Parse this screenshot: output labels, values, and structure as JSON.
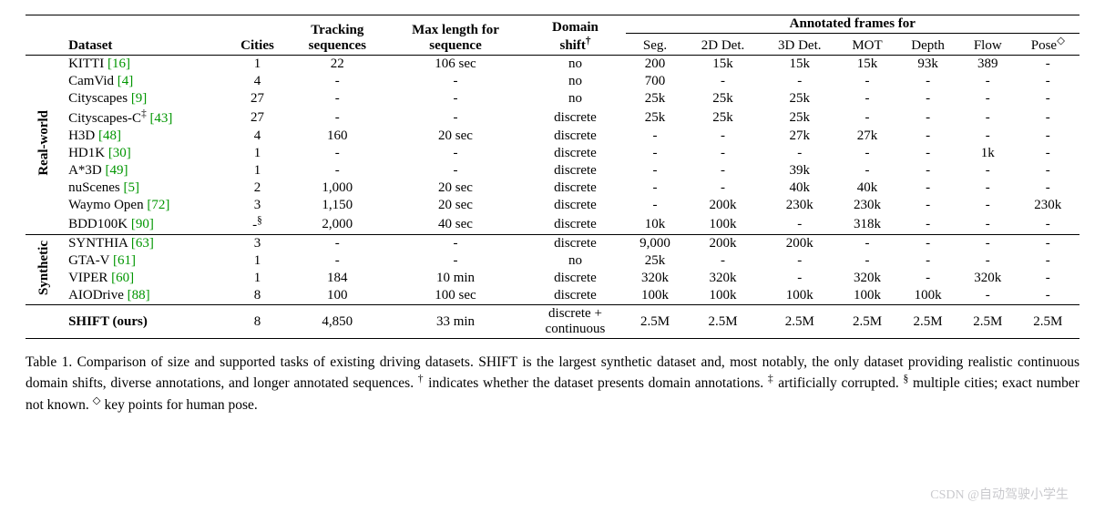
{
  "colors": {
    "text": "#000000",
    "cite": "#009600",
    "background": "#ffffff",
    "rule": "#000000",
    "watermark": "rgba(120,120,130,0.4)"
  },
  "typography": {
    "font_family": "Times New Roman",
    "body_fontsize_pt": 11.5,
    "caption_fontsize_pt": 11.5,
    "header_bold": true
  },
  "table": {
    "headers": {
      "dataset": "Dataset",
      "cities": "Cities",
      "tracking_sequences_l1": "Tracking",
      "tracking_sequences_l2": "sequences",
      "max_len_l1": "Max length for",
      "max_len_l2": "sequence",
      "domain_shift_l1": "Domain",
      "domain_shift_l2": "shift",
      "domain_shift_sup": "†",
      "annotated_span": "Annotated frames for",
      "seg": "Seg.",
      "det2d": "2D Det.",
      "det3d": "3D Det.",
      "mot": "MOT",
      "depth": "Depth",
      "flow": "Flow",
      "pose": "Pose",
      "pose_sup": "◇"
    },
    "groups": {
      "real": "Real-world",
      "synth": "Synthetic"
    },
    "rows_real": [
      {
        "name": "KITTI",
        "cite": "[16]",
        "cities": "1",
        "track": "22",
        "maxlen": "106 sec",
        "shift": "no",
        "seg": "200",
        "d2d": "15k",
        "d3d": "15k",
        "mot": "15k",
        "depth": "93k",
        "flow": "389",
        "pose": "-"
      },
      {
        "name": "CamVid",
        "cite": "[4]",
        "cities": "4",
        "track": "-",
        "maxlen": "-",
        "shift": "no",
        "seg": "700",
        "d2d": "-",
        "d3d": "-",
        "mot": "-",
        "depth": "-",
        "flow": "-",
        "pose": "-"
      },
      {
        "name": "Cityscapes",
        "cite": "[9]",
        "cities": "27",
        "track": "-",
        "maxlen": "-",
        "shift": "no",
        "seg": "25k",
        "d2d": "25k",
        "d3d": "25k",
        "mot": "-",
        "depth": "-",
        "flow": "-",
        "pose": "-"
      },
      {
        "name": "Cityscapes-C",
        "name_sup": "‡",
        "cite": "[43]",
        "cities": "27",
        "track": "-",
        "maxlen": "-",
        "shift": "discrete",
        "seg": "25k",
        "d2d": "25k",
        "d3d": "25k",
        "mot": "-",
        "depth": "-",
        "flow": "-",
        "pose": "-"
      },
      {
        "name": "H3D",
        "cite": "[48]",
        "cities": "4",
        "track": "160",
        "maxlen": "20 sec",
        "shift": "discrete",
        "seg": "-",
        "d2d": "-",
        "d3d": "27k",
        "mot": "27k",
        "depth": "-",
        "flow": "-",
        "pose": "-"
      },
      {
        "name": "HD1K",
        "cite": "[30]",
        "cities": "1",
        "track": "-",
        "maxlen": "-",
        "shift": "discrete",
        "seg": "-",
        "d2d": "-",
        "d3d": "-",
        "mot": "-",
        "depth": "-",
        "flow": "1k",
        "pose": "-"
      },
      {
        "name": "A*3D",
        "cite": "[49]",
        "cities": "1",
        "track": "-",
        "maxlen": "-",
        "shift": "discrete",
        "seg": "-",
        "d2d": "-",
        "d3d": "39k",
        "mot": "-",
        "depth": "-",
        "flow": "-",
        "pose": "-"
      },
      {
        "name": "nuScenes",
        "cite": "[5]",
        "cities": "2",
        "track": "1,000",
        "maxlen": "20 sec",
        "shift": "discrete",
        "seg": "-",
        "d2d": "-",
        "d3d": "40k",
        "mot": "40k",
        "depth": "-",
        "flow": "-",
        "pose": "-"
      },
      {
        "name": "Waymo Open",
        "cite": "[72]",
        "cities": "3",
        "track": "1,150",
        "maxlen": "20 sec",
        "shift": "discrete",
        "seg": "-",
        "d2d": "200k",
        "d3d": "230k",
        "mot": "230k",
        "depth": "-",
        "flow": "-",
        "pose": "230k"
      },
      {
        "name": "BDD100K",
        "cite": "[90]",
        "cities": "-",
        "cities_sup": "§",
        "track": "2,000",
        "maxlen": "40 sec",
        "shift": "discrete",
        "seg": "10k",
        "d2d": "100k",
        "d3d": "-",
        "mot": "318k",
        "depth": "-",
        "flow": "-",
        "pose": "-"
      }
    ],
    "rows_synth": [
      {
        "name": "SYNTHIA",
        "cite": "[63]",
        "cities": "3",
        "track": "-",
        "maxlen": "-",
        "shift": "discrete",
        "seg": "9,000",
        "d2d": "200k",
        "d3d": "200k",
        "mot": "-",
        "depth": "-",
        "flow": "-",
        "pose": "-"
      },
      {
        "name": "GTA-V",
        "cite": "[61]",
        "cities": "1",
        "track": "-",
        "maxlen": "-",
        "shift": "no",
        "seg": "25k",
        "d2d": "-",
        "d3d": "-",
        "mot": "-",
        "depth": "-",
        "flow": "-",
        "pose": "-"
      },
      {
        "name": "VIPER",
        "cite": "[60]",
        "cities": "1",
        "track": "184",
        "maxlen": "10 min",
        "shift": "discrete",
        "seg": "320k",
        "d2d": "320k",
        "d3d": "-",
        "mot": "320k",
        "depth": "-",
        "flow": "320k",
        "pose": "-"
      },
      {
        "name": "AIODrive",
        "cite": "[88]",
        "cities": "8",
        "track": "100",
        "maxlen": "100 sec",
        "shift": "discrete",
        "seg": "100k",
        "d2d": "100k",
        "d3d": "100k",
        "mot": "100k",
        "depth": "100k",
        "flow": "-",
        "pose": "-"
      }
    ],
    "row_ours": {
      "name": "SHIFT (ours)",
      "cites": "",
      "cities": "8",
      "track": "4,850",
      "maxlen": "33 min",
      "shift_l1": "discrete +",
      "shift_l2": "continuous",
      "seg": "2.5M",
      "d2d": "2.5M",
      "d3d": "2.5M",
      "mot": "2.5M",
      "depth": "2.5M",
      "flow": "2.5M",
      "pose": "2.5M"
    }
  },
  "caption": {
    "label": "Table 1.",
    "text": " Comparison of size and supported tasks of existing driving datasets. SHIFT is the largest synthetic dataset and, most notably, the only dataset providing realistic continuous domain shifts, diverse annotations, and longer annotated sequences. ",
    "dagger": "†",
    "dagger_txt": " indicates whether the dataset presents domain annotations. ",
    "ddagger": "‡",
    "ddagger_txt": " artificially corrupted. ",
    "section": "§",
    "section_txt": " multiple cities; exact number not known. ",
    "diamond": "◇",
    "diamond_txt": " key points for human pose."
  },
  "watermark": "CSDN @自动驾驶小学生"
}
